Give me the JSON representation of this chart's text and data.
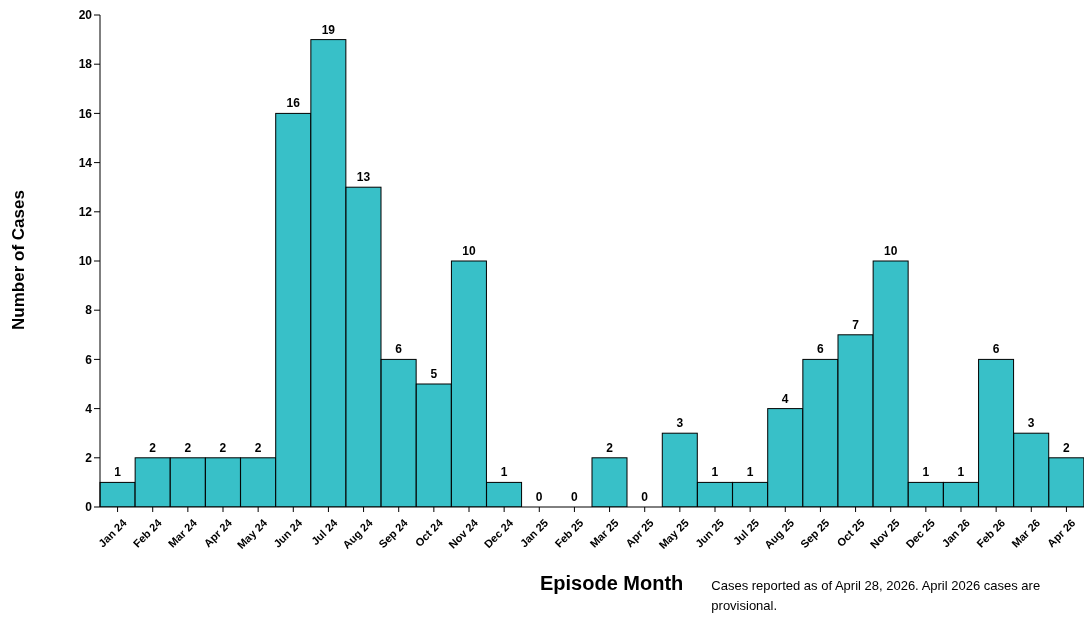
{
  "chart_data": {
    "type": "bar",
    "categories": [
      "Jan 24",
      "Feb 24",
      "Mar 24",
      "Apr 24",
      "May 24",
      "Jun 24",
      "Jul 24",
      "Aug 24",
      "Sep 24",
      "Oct 24",
      "Nov 24",
      "Dec 24",
      "Jan 25",
      "Feb 25",
      "Mar 25",
      "Apr 25",
      "May 25",
      "Jun 25",
      "Jul 25",
      "Aug 25",
      "Sep 25",
      "Oct 25",
      "Nov 25",
      "Dec 25",
      "Jan 26",
      "Feb 26",
      "Mar 26",
      "Apr 26"
    ],
    "values": [
      1,
      2,
      2,
      2,
      2,
      16,
      19,
      13,
      6,
      5,
      10,
      1,
      0,
      0,
      2,
      0,
      3,
      1,
      1,
      4,
      6,
      7,
      10,
      1,
      1,
      6,
      3,
      2
    ],
    "color": "#38c0c8",
    "xlabel": "Episode Month",
    "ylabel": "Number of Cases",
    "ylim": [
      0,
      20
    ],
    "yticks": [
      0,
      2,
      4,
      6,
      8,
      10,
      12,
      14,
      16,
      18,
      20
    ],
    "data_labels": true,
    "grid": false,
    "annotations": [
      "Cases reported as of April 28, 2026. April 2026 cases are provisional."
    ]
  }
}
